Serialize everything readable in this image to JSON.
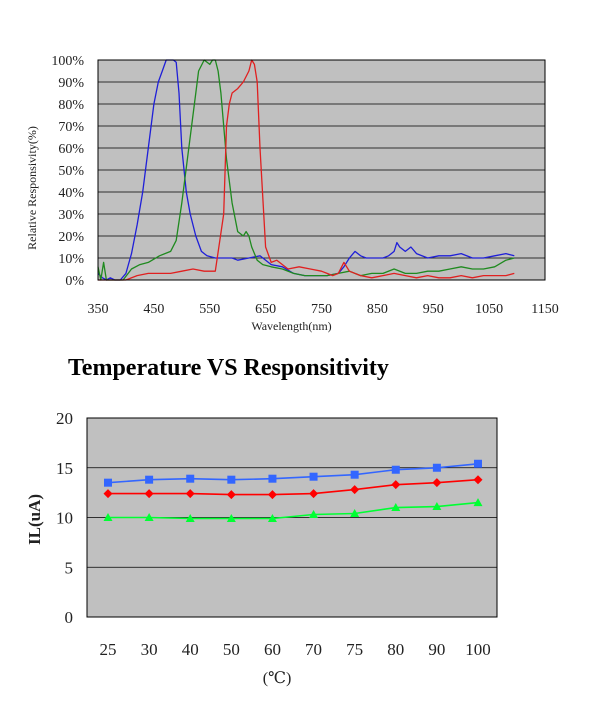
{
  "chart_data": [
    {
      "type": "line",
      "title": "",
      "xlabel": "Wavelength(nm)",
      "ylabel": "Relative Responsivity(%)",
      "xlim": [
        350,
        1150
      ],
      "ylim": [
        0,
        100
      ],
      "x_ticks": [
        "350",
        "450",
        "550",
        "650",
        "750",
        "850",
        "950",
        "1050",
        "1150"
      ],
      "y_ticks": [
        "0%",
        "10%",
        "20%",
        "30%",
        "40%",
        "50%",
        "60%",
        "70%",
        "80%",
        "90%",
        "100%"
      ],
      "grid": true,
      "plot_background": "#c0c0c0",
      "series": [
        {
          "color": "#1f1fd8",
          "x": [
            350,
            358,
            365,
            372,
            380,
            390,
            400,
            410,
            420,
            430,
            440,
            450,
            458,
            465,
            472,
            478,
            485,
            490,
            495,
            500,
            508,
            515,
            525,
            535,
            545,
            560,
            575,
            590,
            600,
            620,
            640,
            660,
            680,
            700,
            720,
            740,
            760,
            780,
            790,
            800,
            810,
            820,
            830,
            840,
            850,
            860,
            870,
            880,
            885,
            890,
            900,
            910,
            920,
            940,
            960,
            980,
            1000,
            1020,
            1040,
            1060,
            1080,
            1095
          ],
          "y": [
            3,
            1,
            0,
            1,
            0,
            0,
            3,
            12,
            25,
            40,
            60,
            80,
            90,
            95,
            100,
            100,
            100,
            99,
            85,
            60,
            40,
            30,
            20,
            13,
            11,
            10,
            10,
            10,
            9,
            10,
            11,
            7,
            6,
            3,
            2,
            2,
            2,
            3,
            6,
            10,
            13,
            11,
            10,
            10,
            10,
            10,
            11,
            13,
            17,
            15,
            13,
            15,
            12,
            10,
            11,
            11,
            12,
            10,
            10,
            11,
            12,
            11
          ]
        },
        {
          "color": "#1f8a1f",
          "x": [
            350,
            355,
            360,
            365,
            370,
            380,
            395,
            410,
            425,
            440,
            460,
            480,
            490,
            500,
            510,
            520,
            530,
            540,
            550,
            555,
            560,
            565,
            570,
            580,
            590,
            600,
            610,
            615,
            620,
            625,
            635,
            645,
            660,
            680,
            700,
            720,
            740,
            760,
            780,
            800,
            820,
            840,
            860,
            880,
            900,
            920,
            940,
            960,
            980,
            1000,
            1020,
            1040,
            1060,
            1080,
            1095
          ],
          "y": [
            6,
            0,
            8,
            0,
            0,
            0,
            0,
            5,
            7,
            8,
            11,
            13,
            18,
            35,
            55,
            75,
            95,
            100,
            98,
            100,
            100,
            95,
            85,
            55,
            35,
            22,
            20,
            22,
            20,
            15,
            9,
            7,
            6,
            5,
            3,
            2,
            2,
            2,
            3,
            4,
            2,
            3,
            3,
            5,
            3,
            3,
            4,
            4,
            5,
            6,
            5,
            5,
            6,
            9,
            10
          ]
        },
        {
          "color": "#e02020",
          "x": [
            350,
            380,
            400,
            420,
            440,
            460,
            480,
            500,
            520,
            540,
            560,
            575,
            580,
            585,
            590,
            600,
            610,
            620,
            625,
            630,
            635,
            640,
            650,
            660,
            670,
            690,
            710,
            730,
            750,
            760,
            770,
            780,
            790,
            800,
            820,
            840,
            860,
            880,
            900,
            920,
            940,
            960,
            980,
            1000,
            1020,
            1040,
            1060,
            1080,
            1095
          ],
          "y": [
            0,
            0,
            0,
            2,
            3,
            3,
            3,
            4,
            5,
            4,
            4,
            30,
            70,
            80,
            85,
            87,
            90,
            95,
            100,
            98,
            90,
            60,
            15,
            8,
            9,
            5,
            6,
            5,
            4,
            3,
            2,
            3,
            8,
            4,
            2,
            1,
            2,
            3,
            2,
            1,
            2,
            1,
            1,
            2,
            1,
            2,
            2,
            2,
            3
          ]
        }
      ]
    },
    {
      "type": "line",
      "title": "Temperature VS Responsitivity",
      "xlabel": "(℃)",
      "ylabel": "IL(uA)",
      "categories": [
        "25",
        "30",
        "40",
        "50",
        "60",
        "70",
        "75",
        "80",
        "90",
        "100"
      ],
      "ylim": [
        0,
        20
      ],
      "y_ticks": [
        "0",
        "5",
        "10",
        "15",
        "20"
      ],
      "grid": true,
      "plot_background": "#c0c0c0",
      "series": [
        {
          "color": "#3366ff",
          "marker": "square",
          "values": [
            13.5,
            13.8,
            13.9,
            13.8,
            13.9,
            14.1,
            14.3,
            14.8,
            15.0,
            15.4
          ]
        },
        {
          "color": "#ff0000",
          "marker": "diamond",
          "values": [
            12.4,
            12.4,
            12.4,
            12.3,
            12.3,
            12.4,
            12.8,
            13.3,
            13.5,
            13.8
          ]
        },
        {
          "color": "#00ff33",
          "marker": "triangle",
          "values": [
            10.0,
            10.0,
            9.9,
            9.9,
            9.9,
            10.3,
            10.4,
            11.0,
            11.1,
            11.5
          ]
        }
      ]
    }
  ]
}
